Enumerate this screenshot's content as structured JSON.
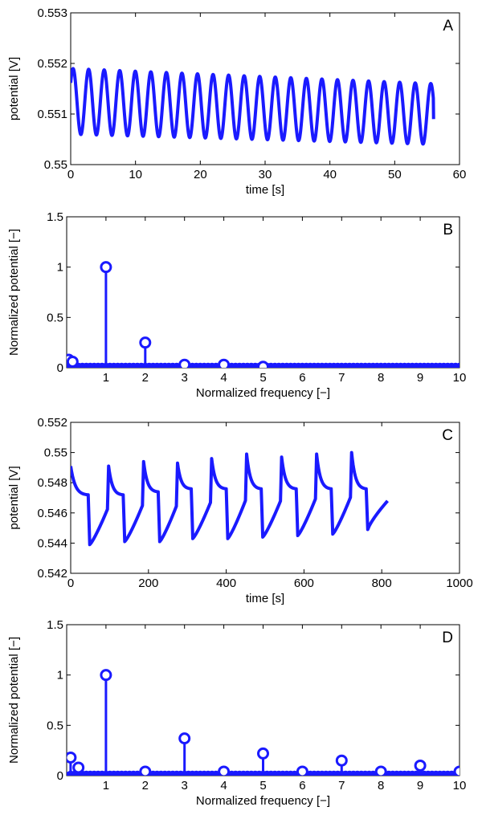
{
  "colors": {
    "series": "#1a1aff",
    "axes": "#000000",
    "background": "#ffffff"
  },
  "chart_data": [
    {
      "type": "line",
      "panel_label": "A",
      "xlabel": "time [s]",
      "ylabel": "potential [V]",
      "xlim": [
        0,
        60
      ],
      "ylim": [
        0.55,
        0.553
      ],
      "xticks": [
        0,
        10,
        20,
        30,
        40,
        50,
        60
      ],
      "xtick_labels": [
        "0",
        "10",
        "20",
        "30",
        "40",
        "50",
        "60"
      ],
      "yticks": [
        0.55,
        0.551,
        0.552,
        0.553
      ],
      "ytick_labels": [
        "0.55",
        "0.551",
        "0.552",
        "0.553"
      ],
      "series": [
        {
          "name": "potential",
          "waveform": "sinusoid",
          "t_start": 0,
          "t_end": 56,
          "period_s": 2.4,
          "max_start": 0.5519,
          "max_end": 0.5516,
          "min_start": 0.5506,
          "min_end": 0.5504,
          "end_value": 0.5509
        }
      ]
    },
    {
      "type": "stem",
      "panel_label": "B",
      "xlabel": "Normalized frequency [−]",
      "ylabel": "Normalized potential [−]",
      "xlim": [
        0,
        10
      ],
      "ylim": [
        0,
        1.5
      ],
      "xticks": [
        1,
        2,
        3,
        4,
        5,
        6,
        7,
        8,
        9,
        10
      ],
      "xtick_labels": [
        "1",
        "2",
        "3",
        "4",
        "5",
        "6",
        "7",
        "8",
        "9",
        "10"
      ],
      "yticks": [
        0,
        0.5,
        1,
        1.5
      ],
      "ytick_labels": [
        "0",
        "0.5",
        "1",
        "1.5"
      ],
      "peaks": [
        {
          "x": 0.05,
          "y": 0.08
        },
        {
          "x": 0.15,
          "y": 0.06
        },
        {
          "x": 1,
          "y": 1.0
        },
        {
          "x": 2,
          "y": 0.25
        },
        {
          "x": 3,
          "y": 0.03
        },
        {
          "x": 4,
          "y": 0.03
        },
        {
          "x": 5,
          "y": 0.01
        }
      ],
      "noise_floor": 0.01
    },
    {
      "type": "line",
      "panel_label": "C",
      "xlabel": "time [s]",
      "ylabel": "potential [V]",
      "xlim": [
        0,
        1000
      ],
      "ylim": [
        0.542,
        0.552
      ],
      "xticks": [
        0,
        200,
        400,
        600,
        800,
        1000
      ],
      "xtick_labels": [
        "0",
        "200",
        "400",
        "600",
        "800",
        "1000"
      ],
      "yticks": [
        0.542,
        0.544,
        0.546,
        0.548,
        0.55,
        0.552
      ],
      "ytick_labels": [
        "0.542",
        "0.544",
        "0.546",
        "0.548",
        "0.55",
        "0.552"
      ],
      "series": [
        {
          "name": "potential",
          "waveform": "relaxation",
          "t_start": 0,
          "start_value": 0.5491,
          "drop_times": [
            45,
            135,
            225,
            310,
            400,
            490,
            580,
            670,
            760
          ],
          "pre_drop_values": [
            0.5472,
            0.5472,
            0.5474,
            0.5476,
            0.5476,
            0.5476,
            0.5476,
            0.5476,
            0.5476
          ],
          "trough_values": [
            0.5439,
            0.5441,
            0.5441,
            0.5443,
            0.5443,
            0.5444,
            0.5445,
            0.5446,
            0.5449
          ],
          "peak_values": [
            0.5491,
            0.5494,
            0.5493,
            0.5496,
            0.5499,
            0.5497,
            0.5499,
            0.55
          ],
          "t_end": 815,
          "end_value": 0.5468
        }
      ]
    },
    {
      "type": "stem",
      "panel_label": "D",
      "xlabel": "Normalized frequency [−]",
      "ylabel": "Normalized potential [−]",
      "xlim": [
        0,
        10
      ],
      "ylim": [
        0,
        1.5
      ],
      "xticks": [
        1,
        2,
        3,
        4,
        5,
        6,
        7,
        8,
        9,
        10
      ],
      "xtick_labels": [
        "1",
        "2",
        "3",
        "4",
        "5",
        "6",
        "7",
        "8",
        "9",
        "10"
      ],
      "yticks": [
        0,
        0.5,
        1,
        1.5
      ],
      "ytick_labels": [
        "0",
        "0.5",
        "1",
        "1.5"
      ],
      "peaks": [
        {
          "x": 0.1,
          "y": 0.18
        },
        {
          "x": 0.3,
          "y": 0.08
        },
        {
          "x": 1,
          "y": 1.0
        },
        {
          "x": 2,
          "y": 0.04
        },
        {
          "x": 3,
          "y": 0.37
        },
        {
          "x": 4,
          "y": 0.04
        },
        {
          "x": 5,
          "y": 0.22
        },
        {
          "x": 6,
          "y": 0.04
        },
        {
          "x": 7,
          "y": 0.15
        },
        {
          "x": 8,
          "y": 0.04
        },
        {
          "x": 9,
          "y": 0.1
        },
        {
          "x": 10,
          "y": 0.04
        }
      ],
      "noise_floor": 0.01
    }
  ]
}
